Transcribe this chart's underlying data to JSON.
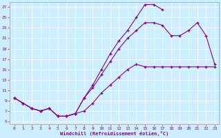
{
  "xlabel": "Windchill (Refroidissement éolien,°C)",
  "bg_color": "#cceeff",
  "line_color": "#880088",
  "xlim": [
    -0.5,
    23.5
  ],
  "ylim": [
    4.5,
    28
  ],
  "xticks": [
    0,
    1,
    2,
    3,
    4,
    5,
    6,
    7,
    8,
    9,
    10,
    11,
    12,
    13,
    14,
    15,
    16,
    17,
    18,
    19,
    20,
    21,
    22,
    23
  ],
  "yticks": [
    5,
    7,
    9,
    11,
    13,
    15,
    17,
    19,
    21,
    23,
    25,
    27
  ],
  "series1_x": [
    0,
    1,
    2,
    3,
    4,
    5,
    6,
    7,
    8,
    9,
    10,
    11,
    12,
    13,
    14,
    15,
    16,
    17
  ],
  "series1_y": [
    9.5,
    8.5,
    7.5,
    7.0,
    7.5,
    6.0,
    6.0,
    6.5,
    9.5,
    12.0,
    15.0,
    18.0,
    20.5,
    22.5,
    25.0,
    27.5,
    27.5,
    26.5
  ],
  "series2_x": [
    0,
    1,
    2,
    3,
    4,
    5,
    6,
    7,
    8,
    9,
    10,
    11,
    12,
    13,
    14,
    15,
    16,
    17,
    18,
    19,
    20,
    21,
    22,
    23
  ],
  "series2_y": [
    9.5,
    8.5,
    7.5,
    7.0,
    7.5,
    6.0,
    6.0,
    6.5,
    9.5,
    11.5,
    14.0,
    16.5,
    19.0,
    21.0,
    22.5,
    24.0,
    24.0,
    23.5,
    21.5,
    21.5,
    22.5,
    24.0,
    21.5,
    16.0
  ],
  "series3_x": [
    0,
    1,
    2,
    3,
    4,
    5,
    6,
    7,
    8,
    9,
    10,
    11,
    12,
    13,
    14,
    15,
    16,
    17,
    18,
    19,
    20,
    21,
    22,
    23
  ],
  "series3_y": [
    9.5,
    8.5,
    7.5,
    7.0,
    7.5,
    6.0,
    6.0,
    6.5,
    7.0,
    8.5,
    10.5,
    12.0,
    13.5,
    15.0,
    16.0,
    15.5,
    15.5,
    15.5,
    15.5,
    15.5,
    15.5,
    15.5,
    15.5,
    15.5
  ]
}
